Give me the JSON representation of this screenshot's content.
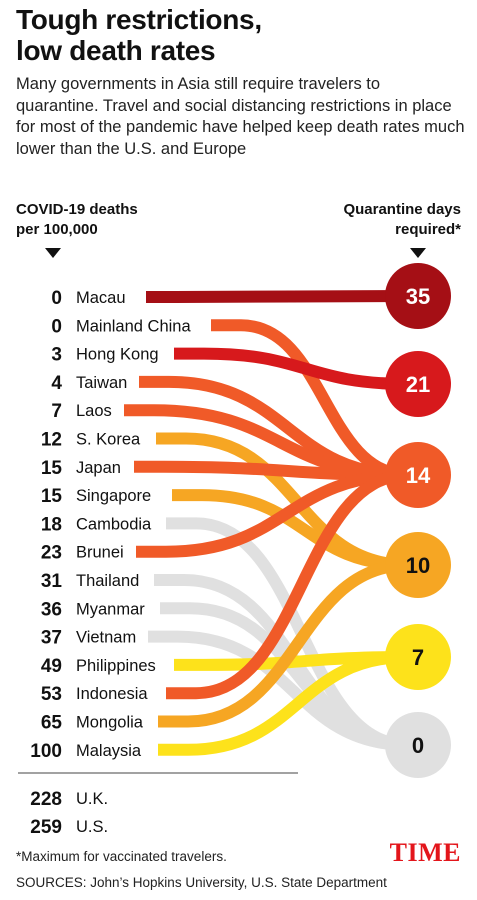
{
  "title_line1": "Tough restrictions,",
  "title_line2": "low death rates",
  "subtitle": "Many governments in Asia still require travelers to quarantine. Travel and social distancing restrictions in place for most of the pandemic have helped keep death rates much lower than the U.S. and Europe",
  "footnote": "*Maximum for vaccinated travelers.",
  "sources": "SOURCES: John’s Hopkins University, U.S. State Department",
  "logo": "TIME",
  "colors": {
    "q35": "#a50f15",
    "q21": "#d7191c",
    "q14": "#f05a28",
    "q10": "#f6a623",
    "q7": "#fde21b",
    "q0": "#e0e0e0"
  },
  "chart_data": {
    "type": "table",
    "left_axis_label_line1": "COVID-19 deaths",
    "left_axis_label_line2": "per 100,000",
    "right_axis_label_line1": "Quarantine days",
    "right_axis_label_line2": "required*",
    "quarantine_levels": [
      35,
      21,
      14,
      10,
      7,
      0
    ],
    "rows": [
      {
        "country": "Macau",
        "deaths": 0,
        "quarantine_days": 35
      },
      {
        "country": "Mainland China",
        "deaths": 0,
        "quarantine_days": 14
      },
      {
        "country": "Hong Kong",
        "deaths": 3,
        "quarantine_days": 21
      },
      {
        "country": "Taiwan",
        "deaths": 4,
        "quarantine_days": 14
      },
      {
        "country": "Laos",
        "deaths": 7,
        "quarantine_days": 14
      },
      {
        "country": "S. Korea",
        "deaths": 12,
        "quarantine_days": 10
      },
      {
        "country": "Japan",
        "deaths": 15,
        "quarantine_days": 14
      },
      {
        "country": "Singapore",
        "deaths": 15,
        "quarantine_days": 10
      },
      {
        "country": "Cambodia",
        "deaths": 18,
        "quarantine_days": 0
      },
      {
        "country": "Brunei",
        "deaths": 23,
        "quarantine_days": 14
      },
      {
        "country": "Thailand",
        "deaths": 31,
        "quarantine_days": 0
      },
      {
        "country": "Myanmar",
        "deaths": 36,
        "quarantine_days": 0
      },
      {
        "country": "Vietnam",
        "deaths": 37,
        "quarantine_days": 0
      },
      {
        "country": "Philippines",
        "deaths": 49,
        "quarantine_days": 7
      },
      {
        "country": "Indonesia",
        "deaths": 53,
        "quarantine_days": 14
      },
      {
        "country": "Mongolia",
        "deaths": 65,
        "quarantine_days": 10
      },
      {
        "country": "Malaysia",
        "deaths": 100,
        "quarantine_days": 7
      }
    ],
    "comparison_rows": [
      {
        "country": "U.K.",
        "deaths": 228
      },
      {
        "country": "U.S.",
        "deaths": 259
      }
    ]
  }
}
